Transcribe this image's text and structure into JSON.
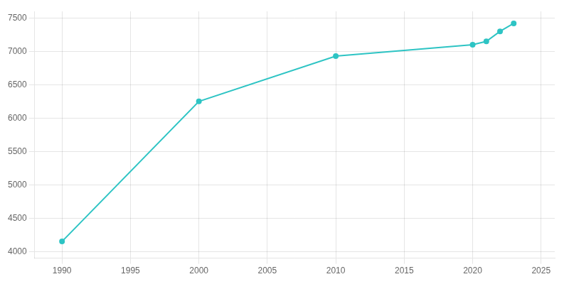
{
  "chart_data": {
    "type": "line",
    "x": [
      1990,
      2000,
      2010,
      2020,
      2021,
      2022,
      2023
    ],
    "values": [
      4150,
      6250,
      6930,
      7100,
      7150,
      7300,
      7420
    ],
    "color": "#2EC4C4",
    "marker": "circle",
    "xlim": [
      1988,
      2026
    ],
    "ylim": [
      3900,
      7600
    ],
    "xticks": [
      1990,
      1995,
      2000,
      2005,
      2010,
      2015,
      2020,
      2025
    ],
    "yticks": [
      4000,
      4500,
      5000,
      5500,
      6000,
      6500,
      7000,
      7500
    ],
    "grid": true
  }
}
